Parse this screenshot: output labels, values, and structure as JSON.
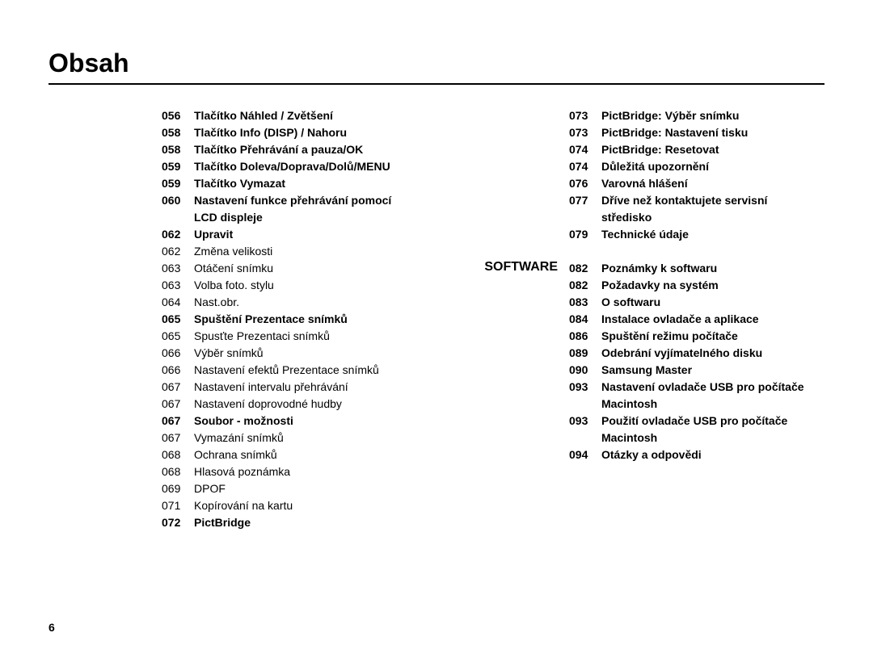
{
  "title": "Obsah",
  "page_number": "6",
  "left": [
    {
      "num": "056",
      "txt": "Tlačítko Náhled / Zvětšení",
      "bold": true
    },
    {
      "num": "058",
      "txt": "Tlačítko Info (DISP) / Nahoru",
      "bold": true
    },
    {
      "num": "058",
      "txt": "Tlačítko Přehrávání a pauza/OK",
      "bold": true
    },
    {
      "num": "059",
      "txt": "Tlačítko Doleva/Doprava/Dolů/MENU",
      "bold": true
    },
    {
      "num": "059",
      "txt": "Tlačítko Vymazat",
      "bold": true
    },
    {
      "num": "060",
      "txt": "Nastavení funkce přehrávání pomocí",
      "bold": true
    },
    {
      "num": "",
      "txt": "LCD displeje",
      "bold": true
    },
    {
      "num": "062",
      "txt": "Upravit",
      "bold": true
    },
    {
      "num": "062",
      "txt": "Změna velikosti",
      "bold": false
    },
    {
      "num": "063",
      "txt": "Otáčení snímku",
      "bold": false
    },
    {
      "num": "063",
      "txt": "Volba foto. stylu",
      "bold": false
    },
    {
      "num": "064",
      "txt": "Nast.obr.",
      "bold": false
    },
    {
      "num": "065",
      "txt": "Spuštění Prezentace snímků",
      "bold": true
    },
    {
      "num": "065",
      "txt": "Spusťte Prezentaci snímků",
      "bold": false
    },
    {
      "num": "066",
      "txt": "Výběr snímků",
      "bold": false
    },
    {
      "num": "066",
      "txt": "Nastavení efektů Prezentace snímků",
      "bold": false
    },
    {
      "num": "067",
      "txt": "Nastavení intervalu přehrávání",
      "bold": false
    },
    {
      "num": "067",
      "txt": "Nastavení doprovodné hudby",
      "bold": false
    },
    {
      "num": "067",
      "txt": "Soubor - možnosti",
      "bold": true
    },
    {
      "num": "067",
      "txt": "Vymazání snímků",
      "bold": false
    },
    {
      "num": "068",
      "txt": "Ochrana snímků",
      "bold": false
    },
    {
      "num": "068",
      "txt": "Hlasová poznámka",
      "bold": false
    },
    {
      "num": "069",
      "txt": "DPOF",
      "bold": false
    },
    {
      "num": "071",
      "txt": "Kopírování na kartu",
      "bold": false
    },
    {
      "num": "072",
      "txt": "PictBridge",
      "bold": true
    }
  ],
  "right_top": [
    {
      "num": "073",
      "txt": "PictBridge: Výběr snímku",
      "bold": true
    },
    {
      "num": "073",
      "txt": "PictBridge: Nastavení tisku",
      "bold": true
    },
    {
      "num": "074",
      "txt": "PictBridge: Resetovat",
      "bold": true
    },
    {
      "num": "074",
      "txt": "Důležitá upozornění",
      "bold": true
    },
    {
      "num": "076",
      "txt": "Varovná hlášení",
      "bold": true
    },
    {
      "num": "077",
      "txt": "Dříve než kontaktujete servisní",
      "bold": true
    },
    {
      "num": "",
      "txt": "středisko",
      "bold": true
    },
    {
      "num": "079",
      "txt": "Technické údaje",
      "bold": true
    }
  ],
  "right_label": "SOFTWARE",
  "right_bottom": [
    {
      "num": "082",
      "txt": "Poznámky k softwaru",
      "bold": true
    },
    {
      "num": "082",
      "txt": "Požadavky na systém",
      "bold": true
    },
    {
      "num": "083",
      "txt": "O softwaru",
      "bold": true
    },
    {
      "num": "084",
      "txt": "Instalace ovladače a aplikace",
      "bold": true
    },
    {
      "num": "086",
      "txt": "Spuštění režimu počítače",
      "bold": true
    },
    {
      "num": "089",
      "txt": "Odebrání vyjímatelného disku",
      "bold": true
    },
    {
      "num": "090",
      "txt": "Samsung Master",
      "bold": true
    },
    {
      "num": "093",
      "txt": "Nastavení ovladače USB pro počítače",
      "bold": true
    },
    {
      "num": "",
      "txt": "Macintosh",
      "bold": true
    },
    {
      "num": "093",
      "txt": "Použití ovladače USB pro počítače",
      "bold": true
    },
    {
      "num": "",
      "txt": "Macintosh",
      "bold": true
    },
    {
      "num": "094",
      "txt": "Otázky a odpovědi",
      "bold": true
    }
  ]
}
